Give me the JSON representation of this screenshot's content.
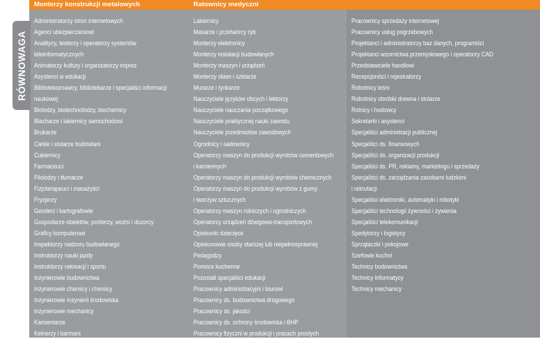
{
  "header": {
    "col1": "Monterzy konstrukcji metalowych",
    "col2": "Ratownicy medyczni"
  },
  "side_label": "RÓWNOWAGA",
  "columns": [
    [
      "Administratorzy stron internetowych",
      "Agenci ubezpieczeniowi",
      "Analitycy, testerzy i operatorzy systemów",
      "teleinformatycznych",
      "Animatorzy kultury i organizatorzy imprez",
      "Asystenci w edukacji",
      "Bibliotekoznawcy, bibliotekarze i specjaliści informacji",
      "naukowej",
      "Biolodzy, biotechnolodzy, biochemicy",
      "Blacharze i lakiernicy samochodowi",
      "Brukarze",
      "Cieśle i stolarze budowlani",
      "Cukiernicy",
      "Farmaceuci",
      "Filolodzy i tłumacze",
      "Fizjoterapeuci i masażyści",
      "Fryzjerzy",
      "Geodeci i kartografowie",
      "Gospodarze obiektów, portierzy, woźni i dozorcy",
      "Graficy komputerowi",
      "Inspektorzy nadzoru budowlanego",
      "Instruktorzy nauki jazdy",
      "Instruktorzy rekreacji i sportu",
      "Inżynierowie budownictwa",
      "Inżynierowie chemicy i chemicy",
      "Inżynierowie inżynierii środowiska",
      "Inżynierowie mechanicy",
      "Kamieniarze",
      "Kelnerzy i barmani"
    ],
    [
      "Lakiernicy",
      "Masarze i przetwórcy ryb",
      "Monterzy elektronicy",
      "Monterzy instalacji budowlanych",
      "Monterzy maszyn i urządzeń",
      "Monterzy okien i szklarze",
      "Murarze i tynkarze",
      "Nauczyciele języków obcych i lektorzy",
      "Nauczyciele nauczania początkowego",
      "Nauczyciele praktycznej nauki zawodu",
      "Nauczyciele przedmiotów zawodowych",
      "Ogrodnicy i sadownicy",
      "Operatorzy maszyn do produkcji wyrobów cementowych",
      "i kamiennych",
      "Operatorzy maszyn do produkcji wyrobów chemicznych",
      "Operatorzy maszyn do produkcji wyrobów z gumy",
      "i tworzyw sztucznych",
      "Operatorzy maszyn rolniczych i ogrodniczych",
      "Operatorzy urządzeń dźwigowo-transportowych",
      "Opiekunki dziecięce",
      "Opiekunowie osoby starszej lub niepełnosprawnej",
      "Pedagodzy",
      "Pomoce kuchenne",
      "Pozostali specjaliści edukacji",
      "Pracownicy administracyjni i biurowi",
      "Pracownicy ds. budownictwa drogowego",
      "Pracownicy ds. jakości",
      "Pracownicy ds. ochrony środowiska i BHP",
      "Pracownicy fizyczni w produkcji i pracach prostych"
    ],
    [
      "Pracownicy sprzedaży internetowej",
      "Pracownicy usług pogrzebowych",
      "Projektanci i administratorzy baz danych, programiści",
      "Projektanci wzornictwa przemysłowego i operatorzy CAD",
      "Przedstawiciele handlowi",
      "Recepcjoniści i rejestratorzy",
      "Robotnicy leśni",
      "Robotnicy obróbki drewna i stolarze",
      "Rolnicy i hodowcy",
      "Sekretarki i asystenci",
      "Specjaliści administracji publicznej",
      "Specjaliści ds. finansowych",
      "Specjaliści ds. organizacji produkcji",
      "Specjaliści ds. PR, reklamy, marketingu i sprzedaży",
      "Specjaliści ds. zarządzania zasobami ludzkimi",
      "i rekrutacji",
      "Specjaliści elektroniki, automatyki i robotyki",
      "Specjaliści technologii żywności i żywienia",
      "Specjaliści telekomunikacji",
      "Spedytorzy i logistycy",
      "Sprzątaczki i pokojowe",
      "Szefowie kuchni",
      "Technicy budownictwa",
      "Technicy informatycy",
      "Technicy mechanicy"
    ]
  ]
}
